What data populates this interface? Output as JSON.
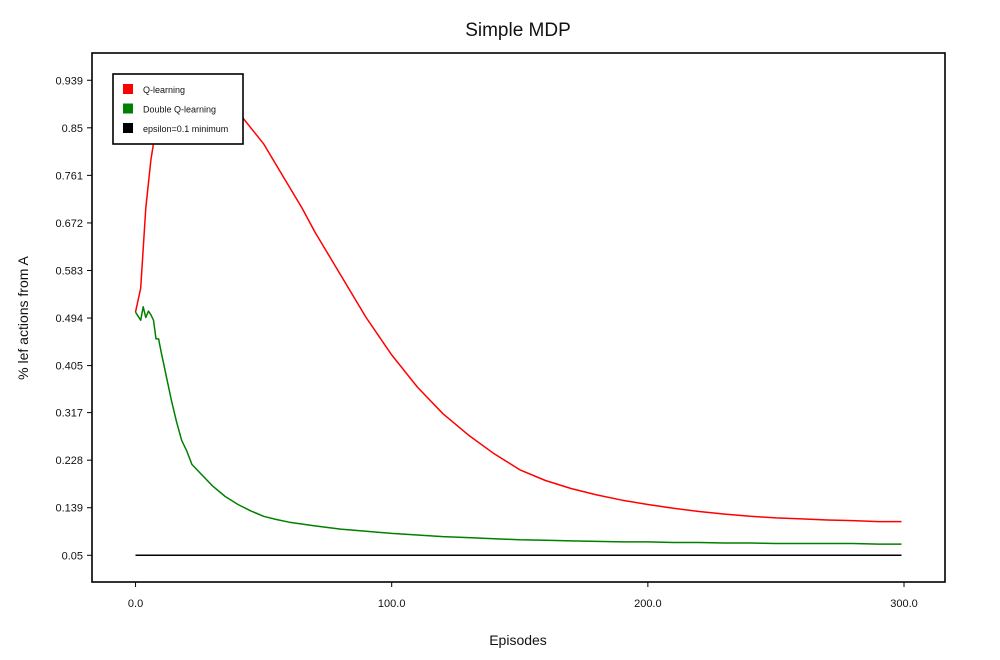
{
  "chart_data": {
    "type": "line",
    "title": "Simple MDP",
    "xlabel": "Episodes",
    "ylabel": "% lef actions from A",
    "xlim": [
      -17,
      316
    ],
    "ylim": [
      0,
      0.99
    ],
    "x_ticks": [
      0,
      100,
      200,
      300
    ],
    "x_tick_labels": [
      "0.0",
      "100.0",
      "200.0",
      "300.0"
    ],
    "y_ticks": [
      0.05,
      0.139,
      0.228,
      0.317,
      0.405,
      0.494,
      0.583,
      0.672,
      0.761,
      0.85,
      0.939
    ],
    "y_tick_labels": [
      "0.05",
      "0.139",
      "0.228",
      "0.317",
      "0.405",
      "0.494",
      "0.583",
      "0.672",
      "0.761",
      "0.85",
      "0.939"
    ],
    "grid": false,
    "legend_position": "top-left",
    "series": [
      {
        "name": "Q-learning",
        "color": "#ff0000",
        "x": [
          0,
          2,
          4,
          6,
          8,
          10,
          12,
          14,
          16,
          18,
          20,
          22,
          24,
          26,
          28,
          30,
          35,
          40,
          45,
          50,
          55,
          60,
          65,
          70,
          75,
          80,
          85,
          90,
          95,
          100,
          110,
          120,
          130,
          140,
          150,
          160,
          170,
          180,
          190,
          200,
          210,
          220,
          230,
          240,
          250,
          260,
          270,
          280,
          290,
          299
        ],
        "y": [
          0.505,
          0.55,
          0.7,
          0.79,
          0.85,
          0.89,
          0.91,
          0.925,
          0.932,
          0.935,
          0.937,
          0.936,
          0.933,
          0.928,
          0.922,
          0.915,
          0.9,
          0.88,
          0.85,
          0.82,
          0.78,
          0.74,
          0.7,
          0.655,
          0.615,
          0.575,
          0.535,
          0.495,
          0.46,
          0.425,
          0.365,
          0.315,
          0.275,
          0.24,
          0.21,
          0.19,
          0.175,
          0.163,
          0.153,
          0.145,
          0.138,
          0.132,
          0.127,
          0.123,
          0.12,
          0.118,
          0.116,
          0.115,
          0.113,
          0.113
        ]
      },
      {
        "name": "Double Q-learning",
        "color": "#008000",
        "x": [
          0,
          2,
          3,
          4,
          5,
          6,
          7,
          8,
          9,
          10,
          12,
          14,
          16,
          18,
          20,
          22,
          25,
          28,
          30,
          35,
          40,
          45,
          50,
          55,
          60,
          70,
          80,
          90,
          100,
          110,
          120,
          130,
          140,
          150,
          160,
          170,
          180,
          190,
          200,
          210,
          220,
          230,
          240,
          250,
          260,
          270,
          280,
          290,
          299
        ],
        "y": [
          0.505,
          0.49,
          0.515,
          0.495,
          0.507,
          0.5,
          0.49,
          0.455,
          0.455,
          0.43,
          0.385,
          0.34,
          0.3,
          0.265,
          0.245,
          0.22,
          0.205,
          0.19,
          0.18,
          0.16,
          0.145,
          0.133,
          0.123,
          0.117,
          0.112,
          0.105,
          0.099,
          0.095,
          0.091,
          0.088,
          0.085,
          0.083,
          0.081,
          0.079,
          0.078,
          0.077,
          0.076,
          0.075,
          0.075,
          0.074,
          0.074,
          0.073,
          0.073,
          0.072,
          0.072,
          0.072,
          0.072,
          0.071,
          0.071
        ]
      },
      {
        "name": "epsilon=0.1 minimum",
        "color": "#000000",
        "x": [
          0,
          299
        ],
        "y": [
          0.05,
          0.05
        ]
      }
    ]
  }
}
